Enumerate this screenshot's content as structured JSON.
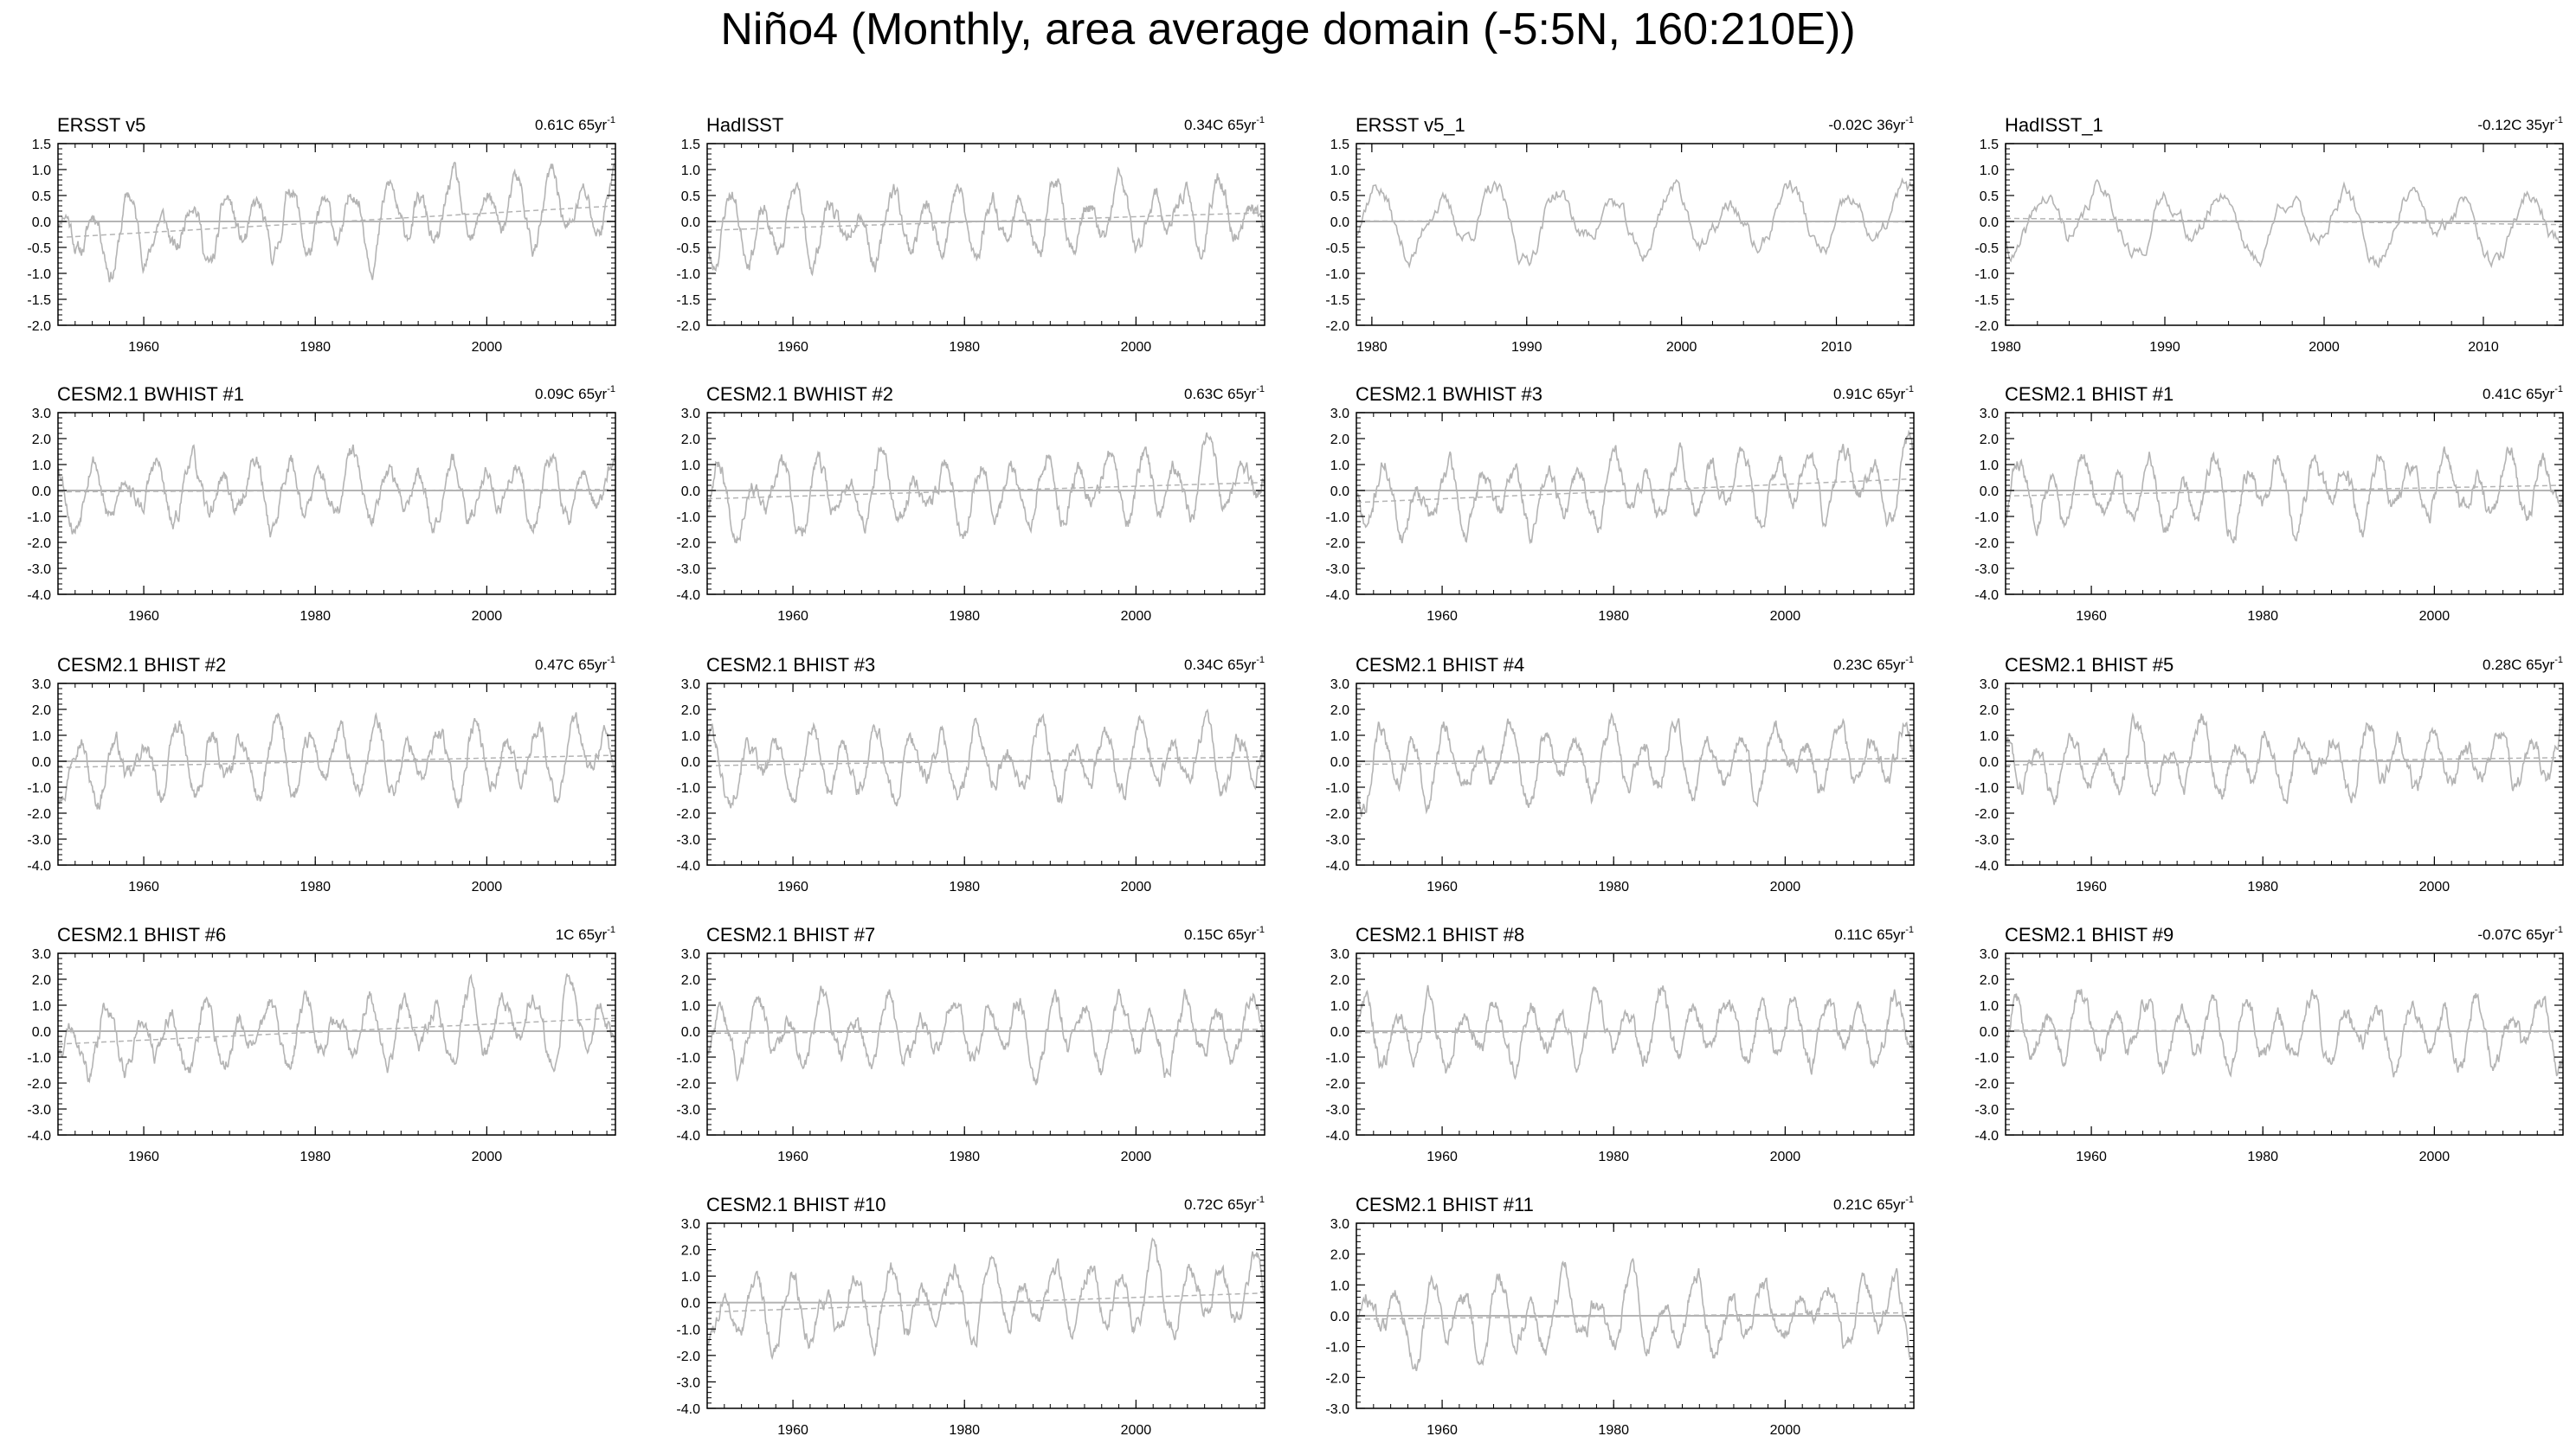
{
  "title": "Niño4 (Monthly, area average domain (-5:5N, 160:210E))",
  "colors": {
    "series": "#b4b4b4",
    "zero_line": "#b4b4b4",
    "trend": "#b4b4b4",
    "axis": "#000000"
  },
  "chart_data": [
    {
      "type": "line",
      "title": "ERSST v5",
      "trend_label": "0.61C 65yr",
      "trend_exp": "-1",
      "xlim": [
        1950,
        2015
      ],
      "xticks": [
        1960,
        1980,
        2000
      ],
      "ylim": [
        -2.0,
        1.5
      ],
      "yticks": [
        -2.0,
        -1.5,
        -1.0,
        -0.5,
        0.0,
        0.5,
        1.0,
        1.5
      ],
      "trend_start": -0.31,
      "trend_end": 0.3,
      "seed": 11
    },
    {
      "type": "line",
      "title": "HadISST",
      "trend_label": "0.34C 65yr",
      "trend_exp": "-1",
      "xlim": [
        1950,
        2015
      ],
      "xticks": [
        1960,
        1980,
        2000
      ],
      "ylim": [
        -2.0,
        1.5
      ],
      "yticks": [
        -2.0,
        -1.5,
        -1.0,
        -0.5,
        0.0,
        0.5,
        1.0,
        1.5
      ],
      "trend_start": -0.17,
      "trend_end": 0.17,
      "seed": 23
    },
    {
      "type": "line",
      "title": "ERSST v5_1",
      "trend_label": "-0.02C 36yr",
      "trend_exp": "-1",
      "xlim": [
        1979,
        2015
      ],
      "xticks": [
        1980,
        1990,
        2000,
        2010
      ],
      "ylim": [
        -2.0,
        1.5
      ],
      "yticks": [
        -2.0,
        -1.5,
        -1.0,
        -0.5,
        0.0,
        0.5,
        1.0,
        1.5
      ],
      "trend_start": 0.01,
      "trend_end": -0.01,
      "seed": 37
    },
    {
      "type": "line",
      "title": "HadISST_1",
      "trend_label": "-0.12C 35yr",
      "trend_exp": "-1",
      "xlim": [
        1980,
        2015
      ],
      "xticks": [
        1980,
        1990,
        2000,
        2010
      ],
      "ylim": [
        -2.0,
        1.5
      ],
      "yticks": [
        -2.0,
        -1.5,
        -1.0,
        -0.5,
        0.0,
        0.5,
        1.0,
        1.5
      ],
      "trend_start": 0.06,
      "trend_end": -0.06,
      "seed": 41
    },
    {
      "type": "line",
      "title": "CESM2.1 BWHIST #1",
      "trend_label": "0.09C 65yr",
      "trend_exp": "-1",
      "xlim": [
        1950,
        2015
      ],
      "xticks": [
        1960,
        1980,
        2000
      ],
      "ylim": [
        -4.0,
        3.0
      ],
      "yticks": [
        -4.0,
        -3.0,
        -2.0,
        -1.0,
        0.0,
        1.0,
        2.0,
        3.0
      ],
      "trend_start": -0.05,
      "trend_end": 0.04,
      "seed": 53
    },
    {
      "type": "line",
      "title": "CESM2.1 BWHIST #2",
      "trend_label": "0.63C 65yr",
      "trend_exp": "-1",
      "xlim": [
        1950,
        2015
      ],
      "xticks": [
        1960,
        1980,
        2000
      ],
      "ylim": [
        -4.0,
        3.0
      ],
      "yticks": [
        -4.0,
        -3.0,
        -2.0,
        -1.0,
        0.0,
        1.0,
        2.0,
        3.0
      ],
      "trend_start": -0.32,
      "trend_end": 0.31,
      "seed": 67
    },
    {
      "type": "line",
      "title": "CESM2.1 BWHIST #3",
      "trend_label": "0.91C 65yr",
      "trend_exp": "-1",
      "xlim": [
        1950,
        2015
      ],
      "xticks": [
        1960,
        1980,
        2000
      ],
      "ylim": [
        -4.0,
        3.0
      ],
      "yticks": [
        -4.0,
        -3.0,
        -2.0,
        -1.0,
        0.0,
        1.0,
        2.0,
        3.0
      ],
      "trend_start": -0.46,
      "trend_end": 0.45,
      "seed": 71
    },
    {
      "type": "line",
      "title": "CESM2.1 BHIST #1",
      "trend_label": "0.41C 65yr",
      "trend_exp": "-1",
      "xlim": [
        1950,
        2015
      ],
      "xticks": [
        1960,
        1980,
        2000
      ],
      "ylim": [
        -4.0,
        3.0
      ],
      "yticks": [
        -4.0,
        -3.0,
        -2.0,
        -1.0,
        0.0,
        1.0,
        2.0,
        3.0
      ],
      "trend_start": -0.21,
      "trend_end": 0.2,
      "seed": 83
    },
    {
      "type": "line",
      "title": "CESM2.1 BHIST #2",
      "trend_label": "0.47C 65yr",
      "trend_exp": "-1",
      "xlim": [
        1950,
        2015
      ],
      "xticks": [
        1960,
        1980,
        2000
      ],
      "ylim": [
        -4.0,
        3.0
      ],
      "yticks": [
        -4.0,
        -3.0,
        -2.0,
        -1.0,
        0.0,
        1.0,
        2.0,
        3.0
      ],
      "trend_start": -0.24,
      "trend_end": 0.23,
      "seed": 97
    },
    {
      "type": "line",
      "title": "CESM2.1 BHIST #3",
      "trend_label": "0.34C 65yr",
      "trend_exp": "-1",
      "xlim": [
        1950,
        2015
      ],
      "xticks": [
        1960,
        1980,
        2000
      ],
      "ylim": [
        -4.0,
        3.0
      ],
      "yticks": [
        -4.0,
        -3.0,
        -2.0,
        -1.0,
        0.0,
        1.0,
        2.0,
        3.0
      ],
      "trend_start": -0.17,
      "trend_end": 0.17,
      "seed": 101
    },
    {
      "type": "line",
      "title": "CESM2.1 BHIST #4",
      "trend_label": "0.23C 65yr",
      "trend_exp": "-1",
      "xlim": [
        1950,
        2015
      ],
      "xticks": [
        1960,
        1980,
        2000
      ],
      "ylim": [
        -4.0,
        3.0
      ],
      "yticks": [
        -4.0,
        -3.0,
        -2.0,
        -1.0,
        0.0,
        1.0,
        2.0,
        3.0
      ],
      "trend_start": -0.12,
      "trend_end": 0.11,
      "seed": 113
    },
    {
      "type": "line",
      "title": "CESM2.1 BHIST #5",
      "trend_label": "0.28C 65yr",
      "trend_exp": "-1",
      "xlim": [
        1950,
        2015
      ],
      "xticks": [
        1960,
        1980,
        2000
      ],
      "ylim": [
        -4.0,
        3.0
      ],
      "yticks": [
        -4.0,
        -3.0,
        -2.0,
        -1.0,
        0.0,
        1.0,
        2.0,
        3.0
      ],
      "trend_start": -0.14,
      "trend_end": 0.14,
      "seed": 127
    },
    {
      "type": "line",
      "title": "CESM2.1 BHIST #6",
      "trend_label": "1C 65yr",
      "trend_exp": "-1",
      "xlim": [
        1950,
        2015
      ],
      "xticks": [
        1960,
        1980,
        2000
      ],
      "ylim": [
        -4.0,
        3.0
      ],
      "yticks": [
        -4.0,
        -3.0,
        -2.0,
        -1.0,
        0.0,
        1.0,
        2.0,
        3.0
      ],
      "trend_start": -0.5,
      "trend_end": 0.5,
      "seed": 131
    },
    {
      "type": "line",
      "title": "CESM2.1 BHIST #7",
      "trend_label": "0.15C 65yr",
      "trend_exp": "-1",
      "xlim": [
        1950,
        2015
      ],
      "xticks": [
        1960,
        1980,
        2000
      ],
      "ylim": [
        -4.0,
        3.0
      ],
      "yticks": [
        -4.0,
        -3.0,
        -2.0,
        -1.0,
        0.0,
        1.0,
        2.0,
        3.0
      ],
      "trend_start": -0.08,
      "trend_end": 0.07,
      "seed": 139
    },
    {
      "type": "line",
      "title": "CESM2.1 BHIST #8",
      "trend_label": "0.11C 65yr",
      "trend_exp": "-1",
      "xlim": [
        1950,
        2015
      ],
      "xticks": [
        1960,
        1980,
        2000
      ],
      "ylim": [
        -4.0,
        3.0
      ],
      "yticks": [
        -4.0,
        -3.0,
        -2.0,
        -1.0,
        0.0,
        1.0,
        2.0,
        3.0
      ],
      "trend_start": -0.06,
      "trend_end": 0.05,
      "seed": 149
    },
    {
      "type": "line",
      "title": "CESM2.1 BHIST #9",
      "trend_label": "-0.07C 65yr",
      "trend_exp": "-1",
      "xlim": [
        1950,
        2015
      ],
      "xticks": [
        1960,
        1980,
        2000
      ],
      "ylim": [
        -4.0,
        3.0
      ],
      "yticks": [
        -4.0,
        -3.0,
        -2.0,
        -1.0,
        0.0,
        1.0,
        2.0,
        3.0
      ],
      "trend_start": 0.04,
      "trend_end": -0.03,
      "seed": 157
    },
    {
      "type": "line",
      "title": "CESM2.1 BHIST #10",
      "trend_label": "0.72C 65yr",
      "trend_exp": "-1",
      "xlim": [
        1950,
        2015
      ],
      "xticks": [
        1960,
        1980,
        2000
      ],
      "ylim": [
        -4.0,
        3.0
      ],
      "yticks": [
        -4.0,
        -3.0,
        -2.0,
        -1.0,
        0.0,
        1.0,
        2.0,
        3.0
      ],
      "trend_start": -0.36,
      "trend_end": 0.36,
      "seed": 163
    },
    {
      "type": "line",
      "title": "CESM2.1 BHIST #11",
      "trend_label": "0.21C 65yr",
      "trend_exp": "-1",
      "xlim": [
        1950,
        2015
      ],
      "xticks": [
        1960,
        1980,
        2000
      ],
      "ylim": [
        -3.0,
        3.0
      ],
      "yticks": [
        -3.0,
        -2.0,
        -1.0,
        0.0,
        1.0,
        2.0,
        3.0
      ],
      "trend_start": -0.11,
      "trend_end": 0.1,
      "seed": 173
    }
  ]
}
